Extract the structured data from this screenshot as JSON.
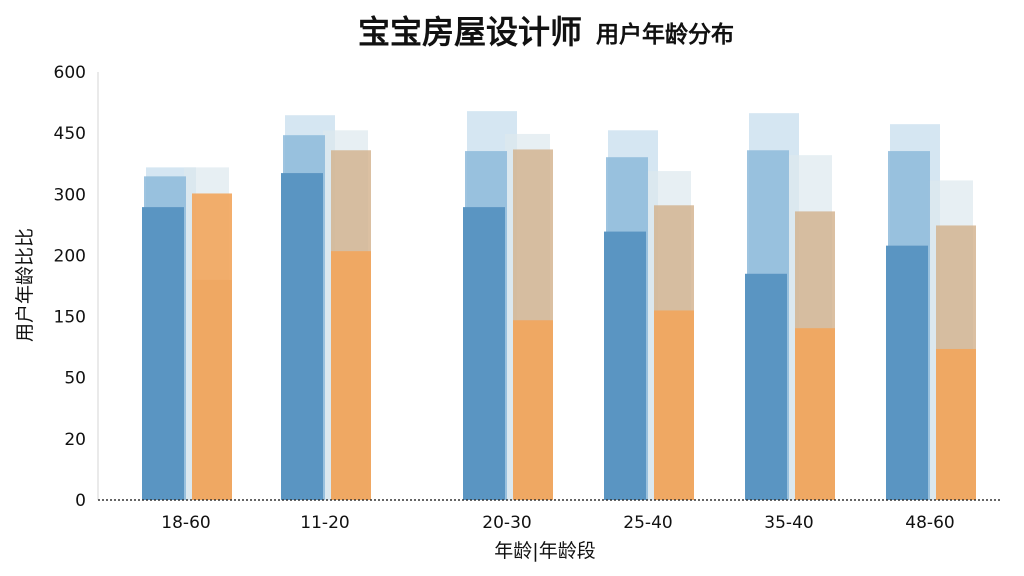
{
  "chart_data": {
    "type": "bar",
    "title": "宝宝房屋设计师",
    "subtitle": "用户年龄分布",
    "xlabel": "年龄|年龄段",
    "ylabel": "用户年龄比比",
    "categories": [
      "18-60",
      "11-20",
      "20-30",
      "25-40",
      "35-40",
      "48-60"
    ],
    "y_ticks": [
      600,
      450,
      300,
      200,
      150,
      50,
      20,
      0
    ],
    "ylim": [
      0,
      600
    ],
    "grid": false,
    "series": [
      {
        "color": "#b9d6ea",
        "values": [
          366,
          494,
          504,
          457,
          499,
          472
        ]
      },
      {
        "color": "#dde8ee",
        "values": [
          366,
          457,
          448,
          357,
          396,
          334
        ]
      },
      {
        "color": "#8dbadb",
        "values": [
          344,
          445,
          406,
          391,
          408,
          406
        ]
      },
      {
        "color": "#d2b08b",
        "values": [
          180,
          408,
          410,
          282,
          272,
          249
        ]
      },
      {
        "color": "#5a95c2",
        "values": [
          279,
          352,
          279,
          239,
          185,
          216
        ]
      },
      {
        "color": "#f2a55c",
        "values": [
          302,
          207,
          144,
          155,
          131,
          97
        ]
      }
    ]
  }
}
